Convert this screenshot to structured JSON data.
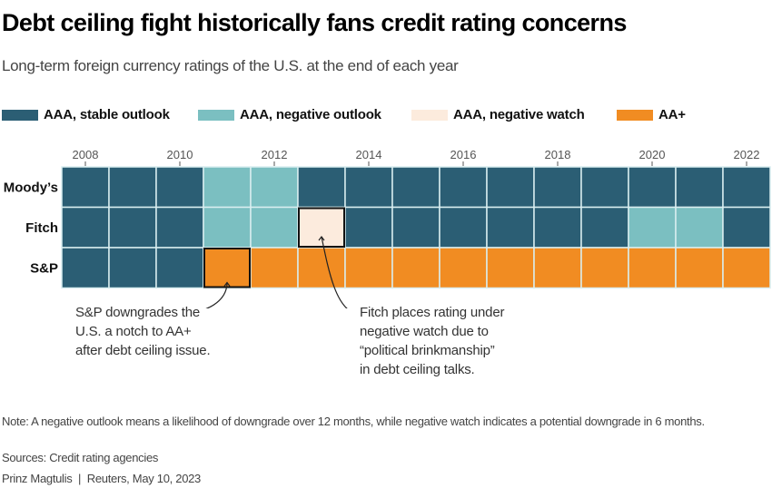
{
  "chart_data": {
    "type": "heatmap",
    "title": "Debt ceiling fight historically fans credit rating concerns",
    "subtitle": "Long-term foreign currency ratings of the U.S. at the end of each year",
    "years": [
      2008,
      2009,
      2010,
      2011,
      2012,
      2013,
      2014,
      2015,
      2016,
      2017,
      2018,
      2019,
      2020,
      2021,
      2022
    ],
    "tick_labels": [
      "2008",
      "2010",
      "2012",
      "2014",
      "2016",
      "2018",
      "2020",
      "2022"
    ],
    "categories": {
      "stable": {
        "label": "AAA, stable outlook",
        "color": "#2b5e74"
      },
      "neg_outlook": {
        "label": "AAA, negative outlook",
        "color": "#7bbfc1"
      },
      "neg_watch": {
        "label": "AAA, negative watch",
        "color": "#fcebdd"
      },
      "aa_plus": {
        "label": "AA+",
        "color": "#f18c22"
      }
    },
    "legend_order": [
      "stable",
      "neg_outlook",
      "neg_watch",
      "aa_plus"
    ],
    "rows": [
      {
        "agency": "Moody’s",
        "values": [
          "stable",
          "stable",
          "stable",
          "neg_outlook",
          "neg_outlook",
          "stable",
          "stable",
          "stable",
          "stable",
          "stable",
          "stable",
          "stable",
          "stable",
          "stable",
          "stable"
        ]
      },
      {
        "agency": "Fitch",
        "values": [
          "stable",
          "stable",
          "stable",
          "neg_outlook",
          "neg_outlook",
          "neg_watch",
          "stable",
          "stable",
          "stable",
          "stable",
          "stable",
          "stable",
          "neg_outlook",
          "neg_outlook",
          "stable"
        ]
      },
      {
        "agency": "S&P",
        "values": [
          "stable",
          "stable",
          "stable",
          "aa_plus",
          "aa_plus",
          "aa_plus",
          "aa_plus",
          "aa_plus",
          "aa_plus",
          "aa_plus",
          "aa_plus",
          "aa_plus",
          "aa_plus",
          "aa_plus",
          "aa_plus"
        ]
      }
    ],
    "highlights": [
      {
        "agency": "S&P",
        "year": 2011,
        "text": [
          "S&P downgrades the",
          "U.S. a notch to AA+",
          "after debt ceiling issue."
        ]
      },
      {
        "agency": "Fitch",
        "year": 2013,
        "text": [
          "Fitch places rating under",
          "negative watch due to",
          "“political brinkmanship”",
          "in debt ceiling talks."
        ]
      }
    ]
  },
  "footer": {
    "note": "Note: A negative outlook means a likelihood of downgrade over 12 months, while negative watch indicates a potential downgrade in 6 months.",
    "sources": "Sources: Credit rating agencies",
    "credit": "Prinz Magtulis  |  Reuters, May 10, 2023"
  }
}
